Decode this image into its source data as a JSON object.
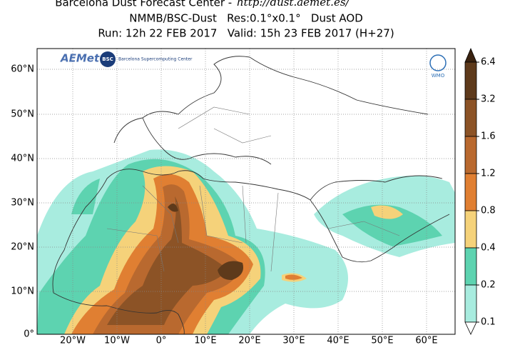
{
  "header": {
    "title": "Barcelona Dust Forecast Center - ",
    "url": "http://dust.aemet.es/",
    "line2": "NMMB/BSC-Dust   Res:0.1°x0.1°   Dust AOD",
    "line3": "Run: 12h 22 FEB 2017   Valid: 15h 23 FEB 2017 (H+27)"
  },
  "map": {
    "lat_ticks": [
      "60°N",
      "50°N",
      "40°N",
      "30°N",
      "20°N",
      "10°N",
      "0°"
    ],
    "lon_ticks": [
      "20°W",
      "10°W",
      "0°",
      "10°E",
      "20°E",
      "30°E",
      "40°E",
      "50°E",
      "60°E"
    ]
  },
  "colorbar": {
    "levels": [
      6.4,
      3.2,
      1.6,
      1.2,
      0.8,
      0.4,
      0.2,
      0.1
    ]
  },
  "logos": {
    "aemet": "AEMet",
    "bsc": "BSC",
    "bsc_name": "Barcelona Supercomputing Center",
    "wmo": "WMO"
  }
}
